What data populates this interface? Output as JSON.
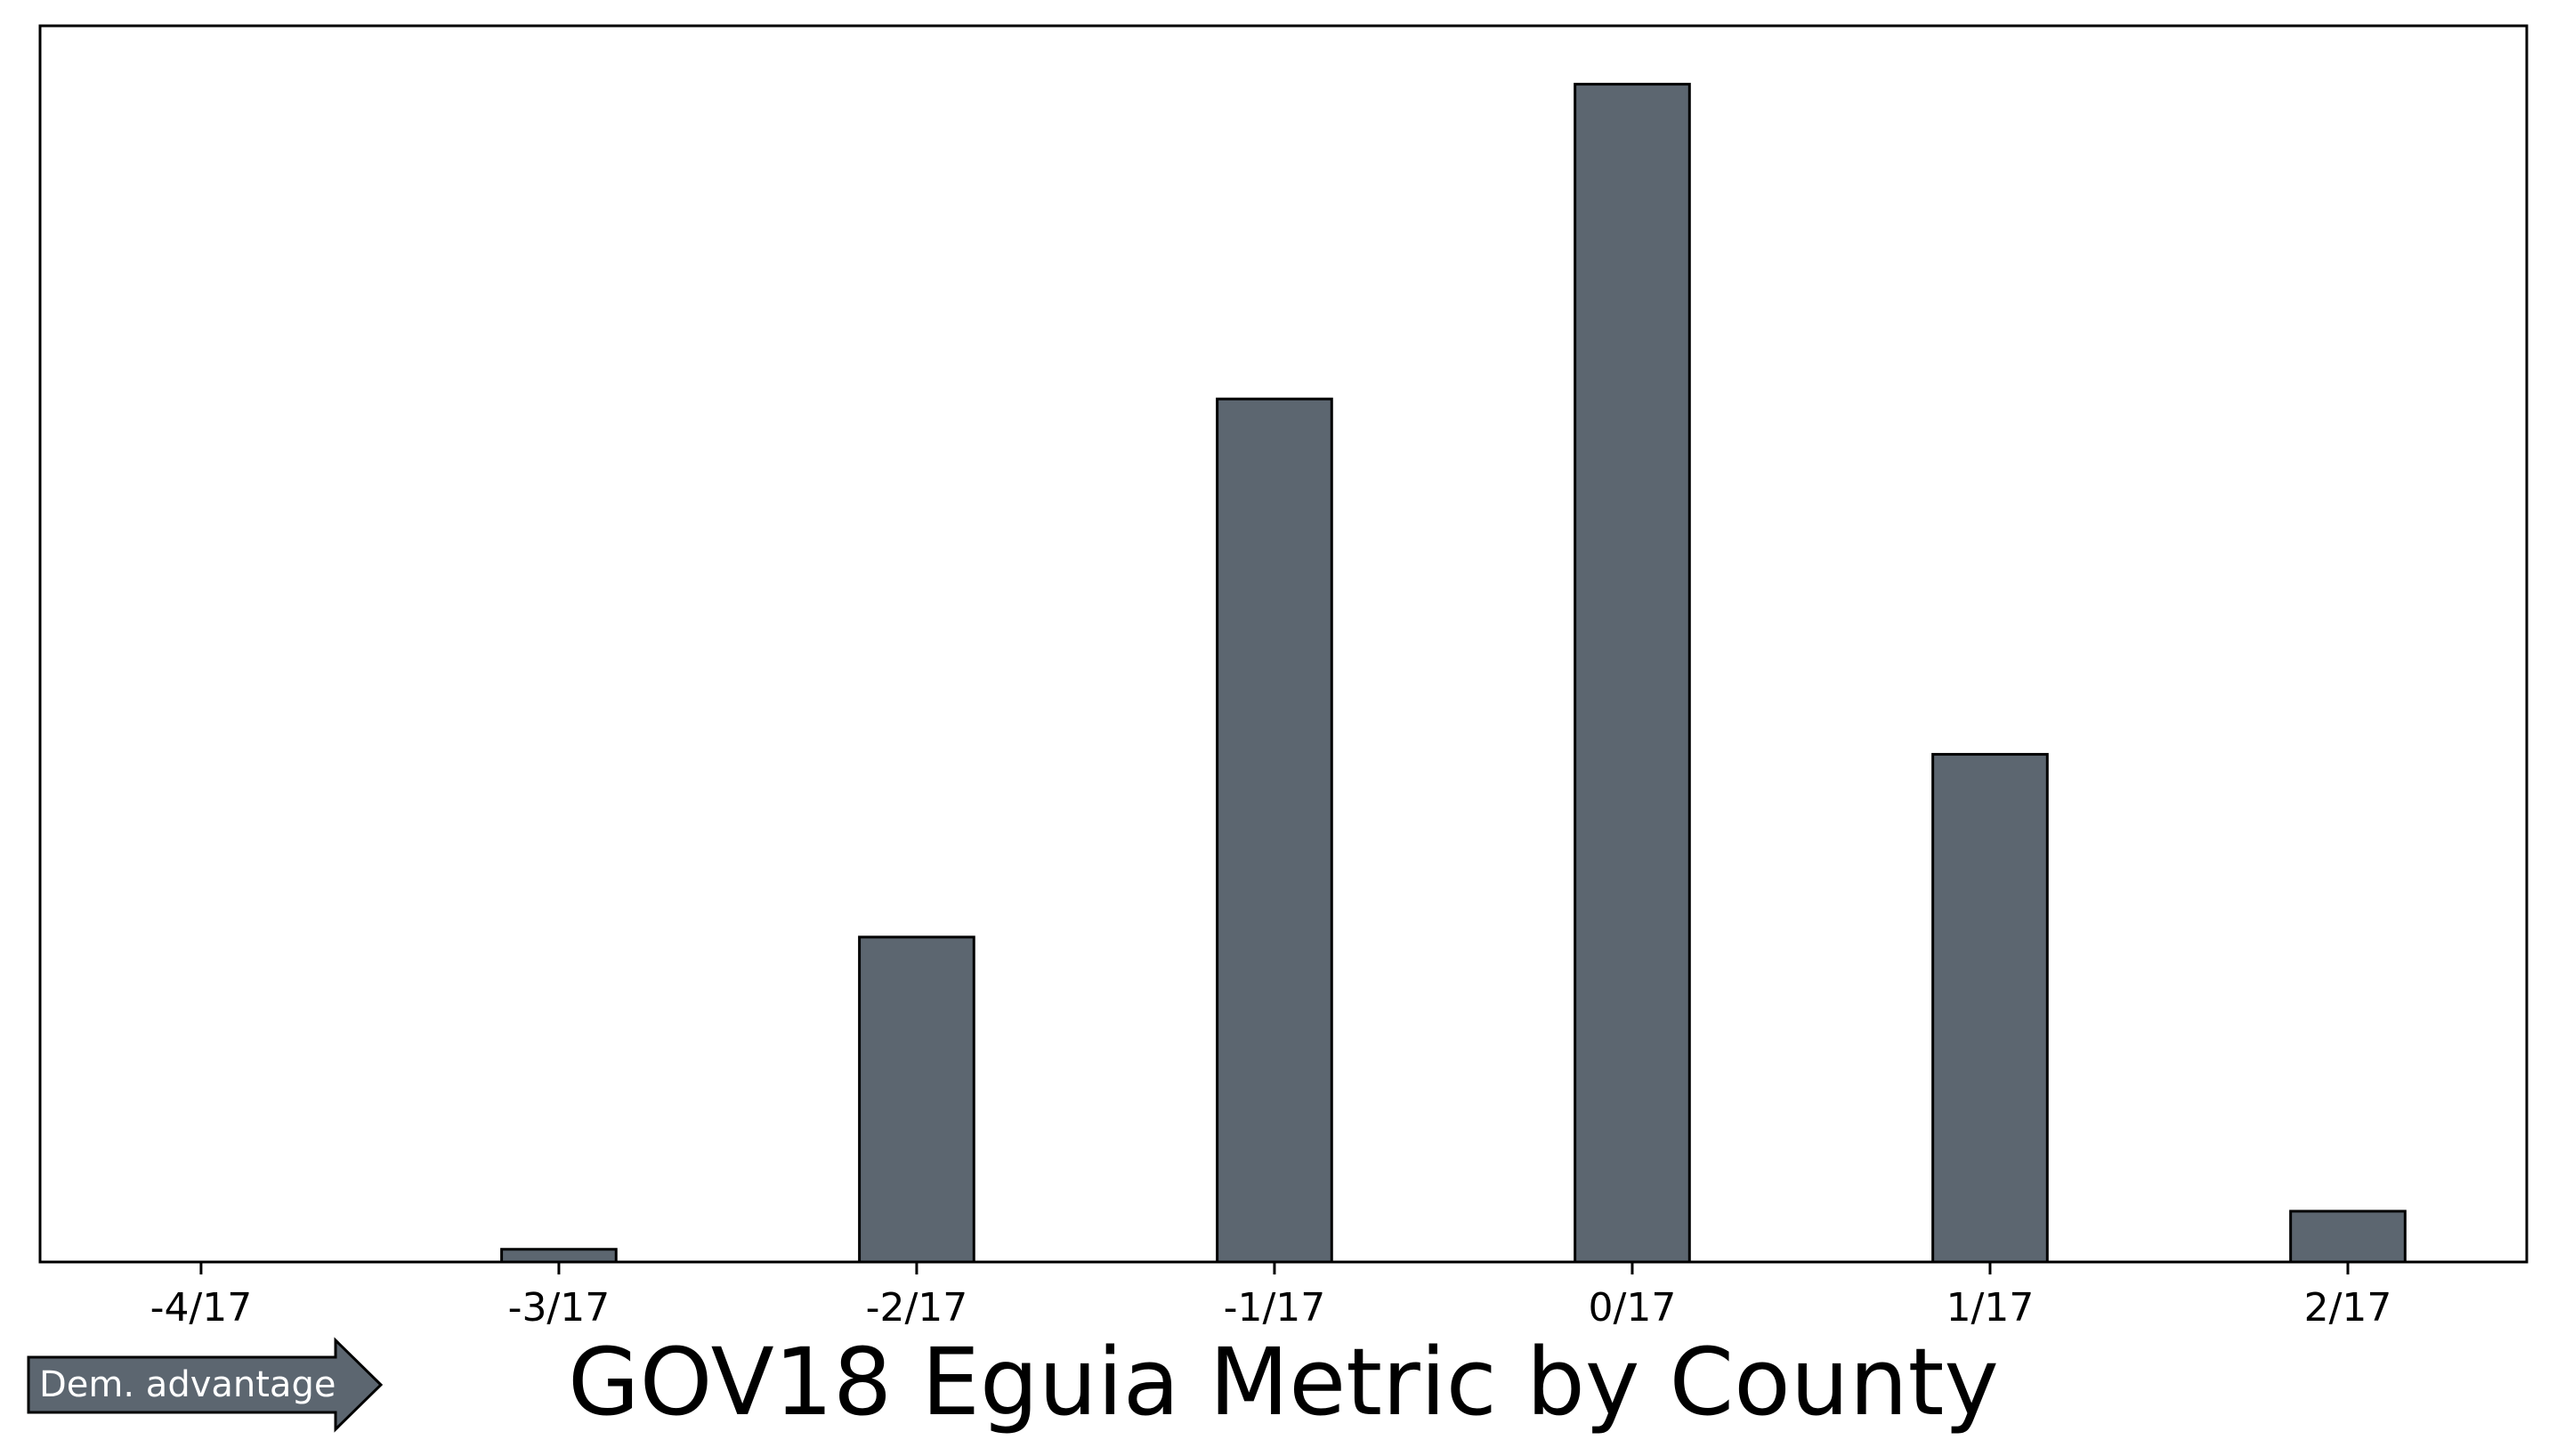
{
  "chart_data": {
    "type": "bar",
    "title": "GOV18 Eguia Metric by County",
    "xlabel": "",
    "ylabel": "",
    "x_ticks": [
      "-4/17",
      "-3/17",
      "-2/17",
      "-1/17",
      "0/17",
      "1/17",
      "2/17"
    ],
    "bins": [
      {
        "x": -4,
        "value": 0
      },
      {
        "x": -3.5,
        "value": 0
      },
      {
        "x": -3,
        "value": 0.25
      },
      {
        "x": -2.5,
        "value": 0
      },
      {
        "x": -2,
        "value": 6.4
      },
      {
        "x": -1.5,
        "value": 0
      },
      {
        "x": -1,
        "value": 17
      },
      {
        "x": -0.5,
        "value": 0
      },
      {
        "x": 0,
        "value": 23.2
      },
      {
        "x": 0.5,
        "value": 0
      },
      {
        "x": 1,
        "value": 10
      },
      {
        "x": 1.5,
        "value": 0
      },
      {
        "x": 2,
        "value": 1.0
      }
    ],
    "xlim": [
      -4.45,
      2.5
    ],
    "ylim": [
      0,
      24.35
    ],
    "y_ticks_shown": false,
    "grid": false,
    "bar_color": "#5c6670",
    "edge_color": "#000000"
  },
  "annotation": {
    "arrow_label": "Dem. advantage",
    "arrow_color": "#5c6670"
  }
}
